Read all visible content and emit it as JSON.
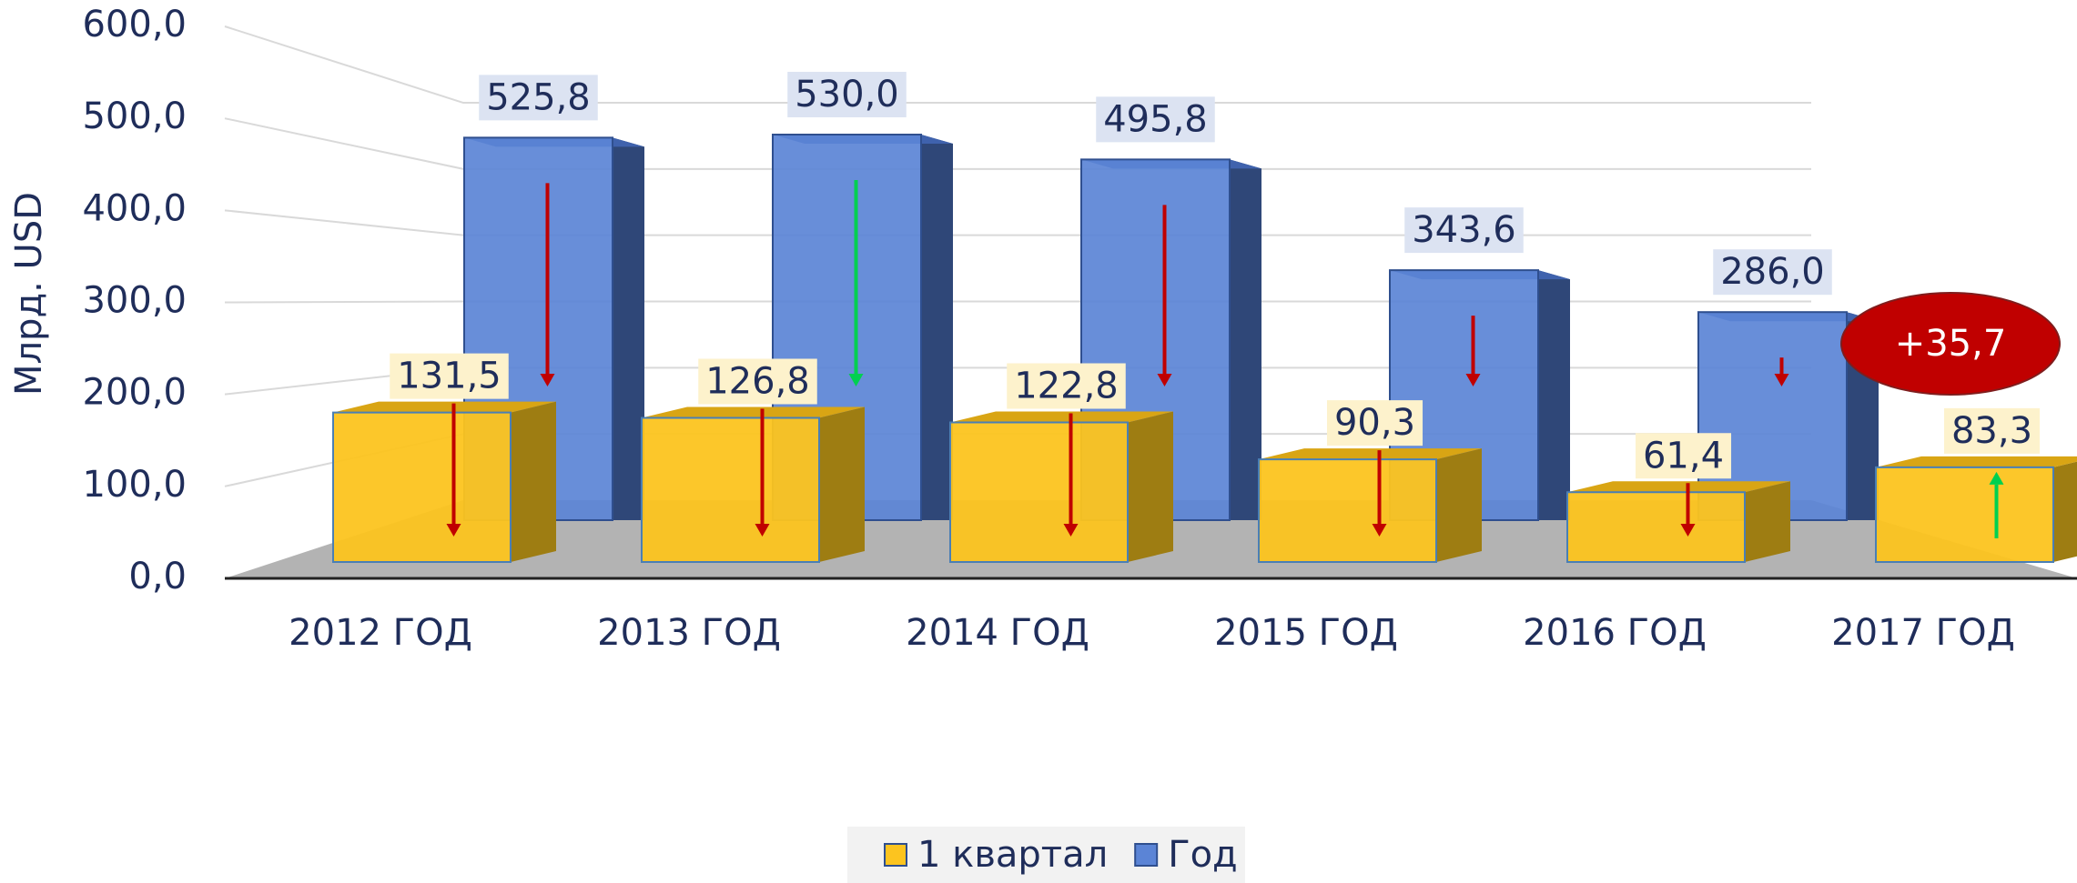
{
  "chart_data": {
    "type": "bar3d",
    "y_axis_label": "Млрд. USD",
    "categories": [
      "2012 ГОД",
      "2013 ГОД",
      "2014 ГОД",
      "2015 ГОД",
      "2016 ГОД",
      "2017 ГОД"
    ],
    "series": [
      {
        "name": "1 квартал",
        "color": "#fcc41f",
        "values": [
          131.5,
          126.8,
          122.8,
          90.3,
          61.4,
          83.3
        ],
        "value_labels": [
          "131,5",
          "126,8",
          "122,8",
          "90,3",
          "61,4",
          "83,3"
        ]
      },
      {
        "name": "Год",
        "color": "#5b84d6",
        "values": [
          525.8,
          530.0,
          495.8,
          343.6,
          286.0,
          null
        ],
        "value_labels": [
          "525,8",
          "530,0",
          "495,8",
          "343,6",
          "286,0",
          null
        ]
      }
    ],
    "ylim": [
      0,
      600
    ],
    "yticks": [
      {
        "value": 0,
        "label": "0,0"
      },
      {
        "value": 100,
        "label": "100,0"
      },
      {
        "value": 200,
        "label": "200,0"
      },
      {
        "value": 300,
        "label": "300,0"
      },
      {
        "value": 400,
        "label": "400,0"
      },
      {
        "value": 500,
        "label": "500,0"
      },
      {
        "value": 600,
        "label": "600,0"
      }
    ],
    "annotation": "+35,7",
    "grid": true
  }
}
